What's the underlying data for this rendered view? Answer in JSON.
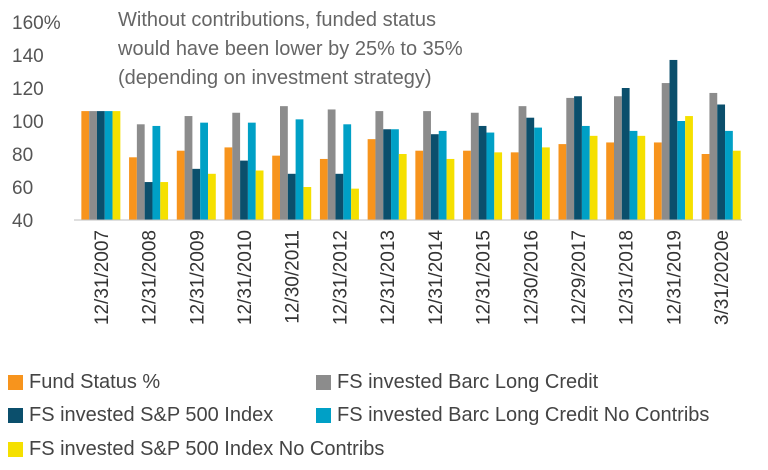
{
  "annotation": {
    "line1": "Without contributions, funded status",
    "line2": "would have been lower by 25% to 35%",
    "line3": "(depending on investment strategy)"
  },
  "chart_data": {
    "type": "bar",
    "title": "",
    "xlabel": "",
    "ylabel": "",
    "ylim": [
      40,
      160
    ],
    "yticks": [
      "40",
      "60",
      "80",
      "100",
      "120",
      "140",
      "160%"
    ],
    "categories": [
      "12/31/2007",
      "12/31/2008",
      "12/31/2009",
      "12/31/2010",
      "12/30/2011",
      "12/31/2012",
      "12/31/2013",
      "12/31/2014",
      "12/31/2015",
      "12/30/2016",
      "12/29/2017",
      "12/31/2018",
      "12/31/2019",
      "3/31/2020e"
    ],
    "series": [
      {
        "name": "Fund Status %",
        "color": "#F7941D",
        "values": [
          106,
          78,
          82,
          84,
          79,
          77,
          89,
          82,
          82,
          81,
          86,
          87,
          87,
          80
        ]
      },
      {
        "name": "FS invested Barc Long Credit",
        "color": "#8C8C8C",
        "values": [
          106,
          98,
          103,
          105,
          109,
          107,
          106,
          106,
          105,
          109,
          114,
          115,
          123,
          117
        ]
      },
      {
        "name": "FS invested S&P 500 Index",
        "color": "#0B4F6C",
        "values": [
          106,
          63,
          71,
          76,
          68,
          68,
          95,
          92,
          97,
          102,
          115,
          120,
          137,
          110
        ]
      },
      {
        "name": "FS invested Barc Long Credit No Contribs",
        "color": "#00A0C6",
        "values": [
          106,
          97,
          99,
          99,
          101,
          98,
          95,
          94,
          93,
          96,
          97,
          94,
          100,
          94
        ]
      },
      {
        "name": "FS invested S&P 500 Index No Contribs",
        "color": "#F5E000",
        "values": [
          106,
          63,
          68,
          70,
          60,
          59,
          80,
          77,
          81,
          84,
          91,
          91,
          103,
          82
        ]
      }
    ]
  },
  "legend": {
    "items": [
      "Fund Status %",
      "FS invested Barc Long Credit",
      "FS invested S&P 500 Index",
      "FS invested Barc Long Credit No Contribs",
      "FS invested S&P 500 Index No Contribs"
    ]
  }
}
